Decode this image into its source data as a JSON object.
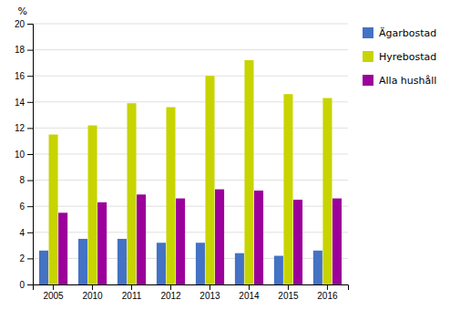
{
  "chart_data": {
    "type": "bar",
    "y_label": "%",
    "categories": [
      "2005",
      "2010",
      "2011",
      "2012",
      "2013",
      "2014",
      "2015",
      "2016"
    ],
    "series": [
      {
        "name": "Ägarbostad",
        "color": "#4472c4",
        "values": [
          2.6,
          3.5,
          3.5,
          3.2,
          3.2,
          2.4,
          2.2,
          2.6
        ]
      },
      {
        "name": "Hyrebostad",
        "color": "#c8d400",
        "values": [
          11.5,
          12.2,
          13.9,
          13.6,
          16.0,
          17.2,
          14.6,
          14.3
        ]
      },
      {
        "name": "Alla hushåll",
        "color": "#9b009b",
        "values": [
          5.5,
          6.3,
          6.9,
          6.6,
          7.3,
          7.2,
          6.5,
          6.6
        ]
      }
    ],
    "ylim": [
      0,
      20
    ],
    "yticks": [
      0,
      2,
      4,
      6,
      8,
      10,
      12,
      14,
      16,
      18,
      20
    ],
    "grid": true,
    "legend": "right"
  }
}
